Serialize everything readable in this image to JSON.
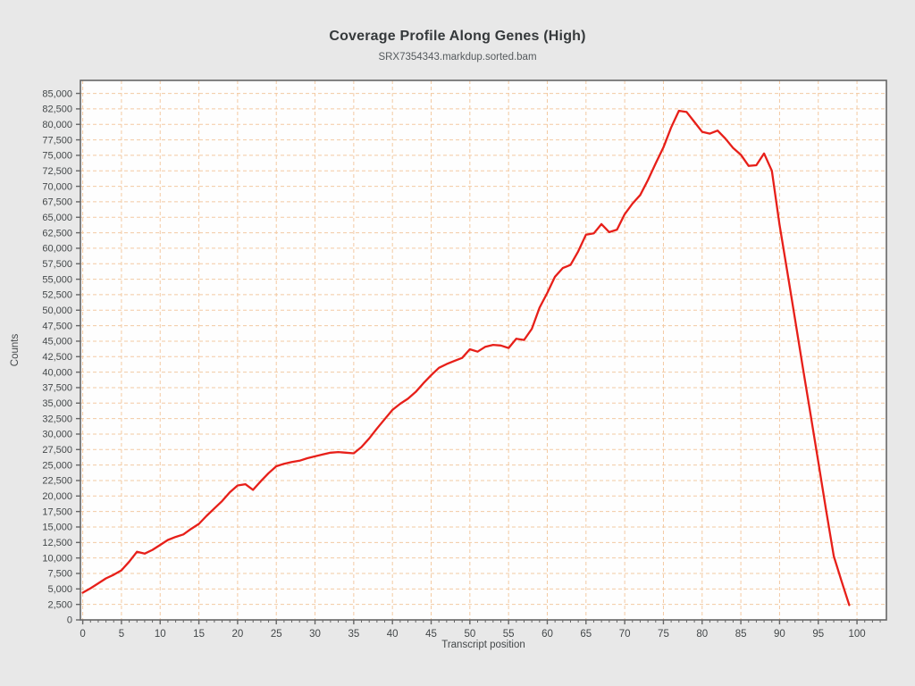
{
  "page": {
    "background": "#e8e8e8"
  },
  "header": {
    "title": "Coverage Profile Along Genes (High)",
    "subtitle": "SRX7354343.markdup.sorted.bam"
  },
  "chart_data": {
    "type": "line",
    "title": "Coverage Profile Along Genes (High)",
    "subtitle": "SRX7354343.markdup.sorted.bam",
    "xlabel": "Transcript position",
    "ylabel": "Counts",
    "legend_position": "none",
    "grid": true,
    "grid_style": "dashed",
    "xlim": [
      -0.3,
      103.8
    ],
    "ylim": [
      0,
      87100
    ],
    "xticks": [
      0,
      5,
      10,
      15,
      20,
      25,
      30,
      35,
      40,
      45,
      50,
      55,
      60,
      65,
      70,
      75,
      80,
      85,
      90,
      95,
      100
    ],
    "yticks": [
      0,
      2500,
      5000,
      7500,
      10000,
      12500,
      15000,
      17500,
      20000,
      22500,
      25000,
      27500,
      30000,
      32500,
      35000,
      37500,
      40000,
      42500,
      45000,
      47500,
      50000,
      52500,
      55000,
      57500,
      60000,
      62500,
      65000,
      67500,
      70000,
      72500,
      75000,
      77500,
      80000,
      82500,
      85000
    ],
    "x_minor_tick_every": 1,
    "x": [
      0,
      1,
      2,
      3,
      4,
      5,
      6,
      7,
      8,
      9,
      10,
      11,
      12,
      13,
      14,
      15,
      16,
      17,
      18,
      19,
      20,
      21,
      22,
      23,
      24,
      25,
      26,
      27,
      28,
      29,
      30,
      31,
      32,
      33,
      34,
      35,
      36,
      37,
      38,
      39,
      40,
      41,
      42,
      43,
      44,
      45,
      46,
      47,
      48,
      49,
      50,
      51,
      52,
      53,
      54,
      55,
      56,
      57,
      58,
      59,
      60,
      61,
      62,
      63,
      64,
      65,
      66,
      67,
      68,
      69,
      70,
      71,
      72,
      73,
      74,
      75,
      76,
      77,
      78,
      79,
      80,
      81,
      82,
      83,
      84,
      85,
      86,
      87,
      88,
      89,
      90,
      91,
      92,
      93,
      94,
      95,
      96,
      97,
      98,
      99
    ],
    "series": [
      {
        "name": "SRX7354343.markdup.sorted.bam",
        "color": "#e71f19",
        "values": [
          4400,
          5100,
          5900,
          6700,
          7300,
          8000,
          9400,
          11000,
          10700,
          11300,
          12100,
          12900,
          13400,
          13800,
          14700,
          15500,
          16800,
          18000,
          19200,
          20600,
          21700,
          21900,
          21000,
          22400,
          23700,
          24800,
          25200,
          25500,
          25700,
          26100,
          26400,
          26700,
          27000,
          27100,
          27000,
          26900,
          27900,
          29300,
          30900,
          32400,
          33900,
          34900,
          35700,
          36800,
          38200,
          39500,
          40700,
          41300,
          41800,
          42300,
          43700,
          43300,
          44100,
          44400,
          44300,
          43900,
          45400,
          45200,
          47000,
          50400,
          52800,
          55400,
          56800,
          57300,
          59500,
          62200,
          62400,
          63900,
          62600,
          63000,
          65500,
          67200,
          68600,
          71000,
          73700,
          76300,
          79500,
          82200,
          82000,
          80400,
          78800,
          78500,
          79000,
          77700,
          76200,
          75100,
          73300,
          73400,
          75300,
          72500,
          63800,
          56200,
          48500,
          40800,
          33200,
          25500,
          17800,
          10300,
          6300,
          2400
        ]
      }
    ],
    "colors": {
      "page_bg": "#e8e8e8",
      "plot_bg": "#fefefe",
      "grid": "#f3c9a2",
      "axis": "#666666",
      "tick_text": "#44484a",
      "title_text": "#35393b"
    }
  }
}
